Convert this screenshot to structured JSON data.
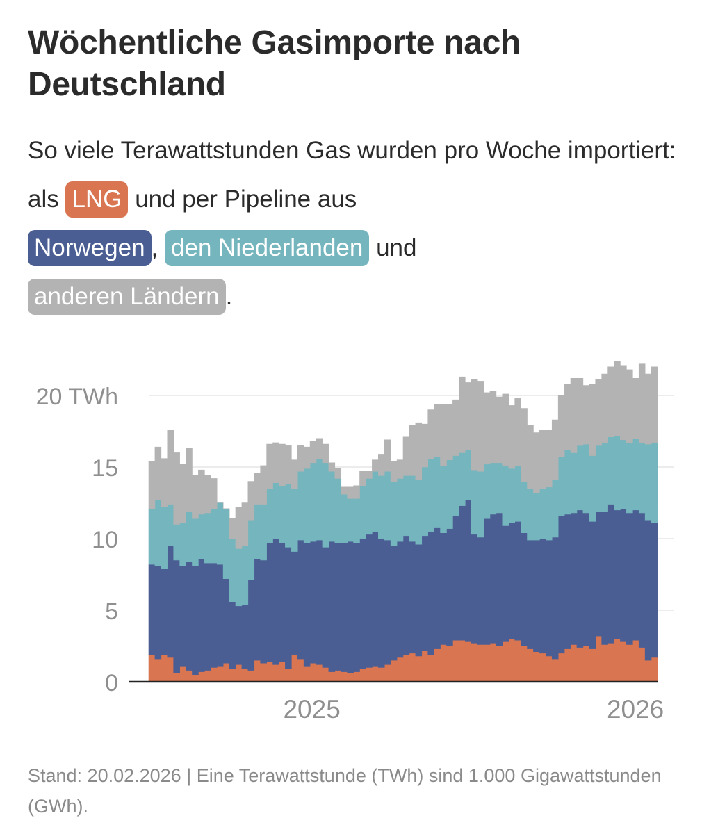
{
  "title": "Wöchentliche Gasimporte nach Deutschland",
  "subtitle": {
    "text1": "So viele Terawattstunden Gas wurden pro Woche importiert: als",
    "lng": "LNG",
    "text2": "und per Pipeline aus",
    "norway": "Norwegen",
    "comma": ",",
    "netherlands": "den Niederlanden",
    "and": "und",
    "other": "anderen Ländern",
    "period": "."
  },
  "footnote": "Stand: 20.02.2026 | Eine Terawattstunde (TWh) sind 1.000 Gigawattstunden (GWh).",
  "colors": {
    "lng": "#d97550",
    "norway": "#4a5e94",
    "netherlands": "#75b5bd",
    "other": "#b3b3b3"
  },
  "chart_data": {
    "type": "area",
    "stacked": true,
    "grid": true,
    "ylim": [
      0,
      22
    ],
    "yticks": [
      {
        "value": 0,
        "label": "0"
      },
      {
        "value": 5,
        "label": "5"
      },
      {
        "value": 10,
        "label": "10"
      },
      {
        "value": 15,
        "label": "15"
      },
      {
        "value": 20,
        "label": "20 TWh"
      }
    ],
    "x_start": "2024-07-01",
    "x_interval": "week",
    "xticks": [
      {
        "value": "2025-01-01",
        "label": "2025"
      },
      {
        "value": "2026-01-01",
        "label": "2026"
      }
    ],
    "series": [
      {
        "name": "LNG",
        "values": [
          1.9,
          1.6,
          1.9,
          1.7,
          0.6,
          1.1,
          0.8,
          0.5,
          0.7,
          0.8,
          1.0,
          1.1,
          1.3,
          0.9,
          1.2,
          0.9,
          0.8,
          1.5,
          1.3,
          1.4,
          1.2,
          1.4,
          0.9,
          1.9,
          1.6,
          1.1,
          1.3,
          1.2,
          1.0,
          0.7,
          0.8,
          0.7,
          0.6,
          0.7,
          0.9,
          1.0,
          1.1,
          1.0,
          1.2,
          1.5,
          1.7,
          1.9,
          2.0,
          1.8,
          2.2,
          1.9,
          2.3,
          2.6,
          2.5,
          2.9,
          2.9,
          2.8,
          2.7,
          2.6,
          2.6,
          2.7,
          2.5,
          2.8,
          3.0,
          2.9,
          2.5,
          2.3,
          2.1,
          2.0,
          1.8,
          1.6,
          2.0,
          2.3,
          2.6,
          2.4,
          2.5,
          2.3,
          3.2,
          2.6,
          2.7,
          3.0,
          2.8,
          2.6,
          2.9,
          2.4,
          1.5,
          1.7
        ]
      },
      {
        "name": "Norwegen",
        "values": [
          6.3,
          6.5,
          6.0,
          7.8,
          7.9,
          7.0,
          7.6,
          7.6,
          7.9,
          7.5,
          7.3,
          7.1,
          5.9,
          4.7,
          4.1,
          4.5,
          6.3,
          7.1,
          7.2,
          8.3,
          8.8,
          8.3,
          8.5,
          7.2,
          8.3,
          8.6,
          8.5,
          8.7,
          8.4,
          9.1,
          8.9,
          9.0,
          9.2,
          9.0,
          9.1,
          9.3,
          9.4,
          9.0,
          8.7,
          8.0,
          8.1,
          8.3,
          7.8,
          7.8,
          8.0,
          8.6,
          8.5,
          7.8,
          8.2,
          8.7,
          9.4,
          9.9,
          7.6,
          7.5,
          8.8,
          9.0,
          9.3,
          8.1,
          8.1,
          8.3,
          7.9,
          7.6,
          7.8,
          8.0,
          8.1,
          8.5,
          9.6,
          9.4,
          9.2,
          9.6,
          9.3,
          8.9,
          8.7,
          9.3,
          9.7,
          9.0,
          9.3,
          9.2,
          9.1,
          9.4,
          9.8,
          9.4
        ]
      },
      {
        "name": "den Niederlanden",
        "values": [
          3.9,
          4.6,
          4.3,
          2.9,
          2.5,
          3.0,
          3.5,
          3.3,
          3.1,
          3.5,
          3.8,
          4.3,
          4.9,
          4.4,
          4.0,
          4.1,
          4.2,
          3.8,
          3.9,
          3.8,
          3.9,
          4.0,
          4.4,
          4.4,
          4.8,
          5.2,
          5.5,
          5.7,
          5.9,
          4.9,
          4.5,
          3.4,
          3.0,
          3.1,
          3.7,
          3.9,
          4.2,
          4.4,
          4.8,
          4.5,
          4.4,
          4.2,
          4.6,
          4.5,
          4.8,
          5.1,
          4.9,
          4.7,
          4.8,
          4.2,
          3.7,
          3.5,
          4.5,
          4.6,
          3.8,
          3.6,
          3.5,
          4.2,
          3.8,
          3.9,
          3.6,
          3.6,
          3.3,
          3.5,
          3.7,
          4.0,
          4.1,
          4.5,
          4.2,
          4.5,
          4.8,
          4.6,
          4.6,
          4.8,
          4.7,
          5.2,
          4.8,
          4.9,
          5.0,
          4.9,
          5.3,
          5.6
        ]
      },
      {
        "name": "anderen Ländern",
        "values": [
          3.3,
          3.7,
          3.4,
          5.2,
          5.0,
          4.1,
          4.4,
          3.0,
          3.1,
          2.6,
          2.1,
          0.0,
          0.0,
          1.4,
          2.9,
          3.0,
          2.7,
          2.2,
          2.7,
          3.1,
          2.8,
          2.9,
          2.7,
          2.0,
          1.8,
          1.5,
          1.5,
          1.4,
          1.3,
          0.6,
          0.7,
          0.5,
          0.8,
          0.9,
          1.0,
          0.5,
          0.8,
          1.5,
          2.2,
          1.4,
          1.3,
          2.7,
          3.5,
          4.0,
          3.0,
          3.4,
          3.7,
          4.3,
          3.9,
          3.9,
          5.3,
          4.7,
          6.3,
          6.3,
          5.0,
          5.0,
          4.6,
          5.0,
          4.4,
          4.7,
          5.1,
          4.4,
          4.2,
          4.1,
          4.0,
          4.2,
          4.3,
          4.6,
          5.2,
          4.7,
          4.1,
          5.0,
          4.6,
          4.8,
          4.9,
          5.2,
          5.2,
          5.1,
          4.2,
          5.5,
          4.9,
          5.3
        ]
      }
    ]
  }
}
